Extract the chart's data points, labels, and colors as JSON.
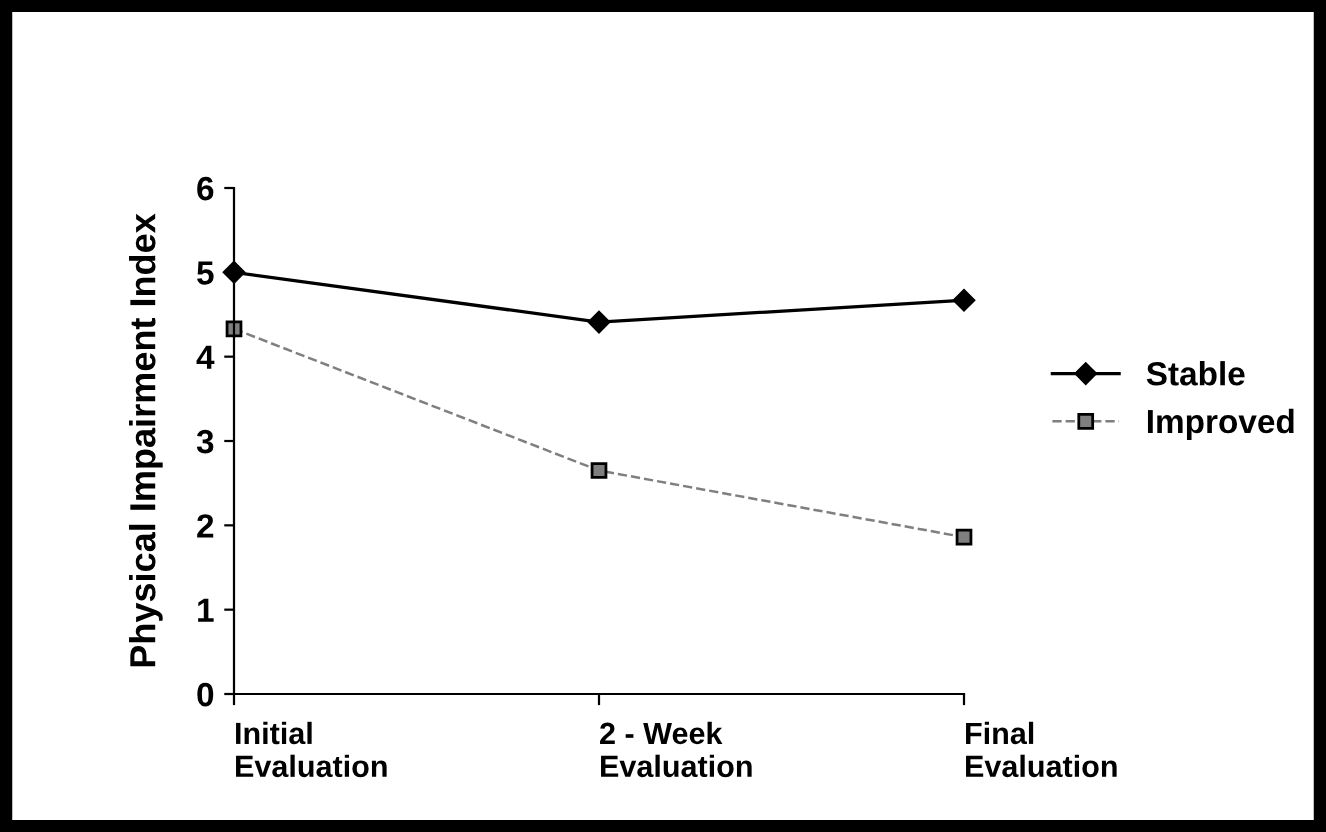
{
  "chart_data": {
    "type": "line",
    "ylabel": "Physical Impairment Index",
    "categories": [
      "Initial\nEvaluation",
      "2 - Week\nEvaluation",
      "Final\nEvaluation"
    ],
    "series": [
      {
        "name": "Stable",
        "color": "#000000",
        "values": [
          5.0,
          4.41,
          4.67
        ],
        "marker": "diamond",
        "line_style": "solid"
      },
      {
        "name": "Improved",
        "color": "#7f7f7f",
        "values": [
          4.33,
          2.65,
          1.86
        ],
        "marker": "square",
        "line_style": "dashed"
      }
    ],
    "ylim": [
      0,
      6
    ],
    "yticks": [
      0,
      1,
      2,
      3,
      4,
      5,
      6
    ],
    "grid": false,
    "legend": "right"
  }
}
